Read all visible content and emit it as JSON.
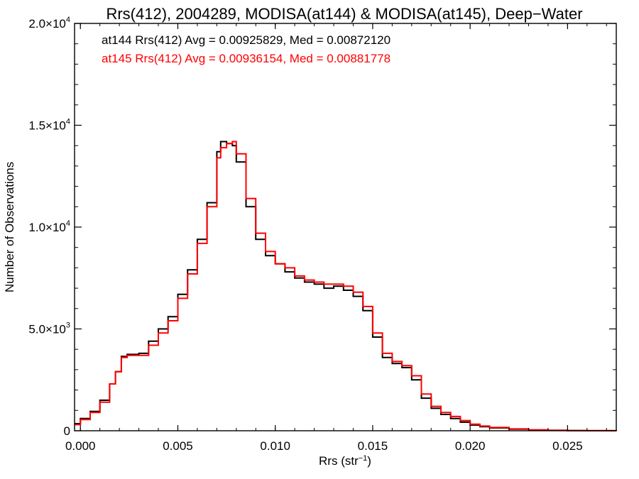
{
  "chart_data": {
    "type": "line",
    "title": "Rrs(412), 2004289, MODISA(at144) & MODISA(at145), Deep−Water",
    "xlabel": {
      "base": "Rrs (str",
      "sup": "−1",
      "close": ")"
    },
    "ylabel": "Number of Observations",
    "xlim": [
      -0.0003,
      0.0275
    ],
    "ylim": [
      0,
      20000
    ],
    "grid": false,
    "x_ticks": [
      {
        "value": 0.0,
        "label": "0.000"
      },
      {
        "value": 0.005,
        "label": "0.005"
      },
      {
        "value": 0.01,
        "label": "0.010"
      },
      {
        "value": 0.015,
        "label": "0.015"
      },
      {
        "value": 0.02,
        "label": "0.020"
      },
      {
        "value": 0.025,
        "label": "0.025"
      }
    ],
    "y_ticks": [
      {
        "value": 0,
        "mant": "0",
        "exp": ""
      },
      {
        "value": 5000,
        "mant": "5.0×10",
        "exp": "3"
      },
      {
        "value": 10000,
        "mant": "1.0×10",
        "exp": "4"
      },
      {
        "value": 15000,
        "mant": "1.5×10",
        "exp": "4"
      },
      {
        "value": 20000,
        "mant": "2.0×10",
        "exp": "4"
      }
    ],
    "annotations": [
      {
        "text": "at144 Rrs(412) Avg = 0.00925829, Med = 0.00872120",
        "color": "#000000"
      },
      {
        "text": "at145 Rrs(412) Avg = 0.00936154, Med = 0.00881778",
        "color": "#ff0000"
      }
    ],
    "series": [
      {
        "name": "at144",
        "color": "#000000",
        "x": [
          -0.0003,
          0.0,
          0.0005,
          0.001,
          0.0015,
          0.0018,
          0.0021,
          0.0024,
          0.003,
          0.0035,
          0.004,
          0.0045,
          0.005,
          0.0055,
          0.006,
          0.0065,
          0.007,
          0.0072,
          0.0075,
          0.0078,
          0.008,
          0.0085,
          0.009,
          0.0095,
          0.01,
          0.0105,
          0.011,
          0.0115,
          0.012,
          0.0125,
          0.013,
          0.0135,
          0.014,
          0.0145,
          0.015,
          0.0155,
          0.016,
          0.0165,
          0.017,
          0.0175,
          0.018,
          0.0185,
          0.019,
          0.0195,
          0.02,
          0.0205,
          0.021,
          0.022,
          0.023,
          0.024,
          0.025,
          0.026,
          0.0275
        ],
        "y": [
          350,
          600,
          950,
          1500,
          2300,
          2900,
          3650,
          3750,
          3800,
          4400,
          5000,
          5600,
          6700,
          7900,
          9400,
          11200,
          13700,
          14200,
          14100,
          14000,
          13200,
          11000,
          9400,
          8600,
          8200,
          7800,
          7500,
          7300,
          7200,
          7000,
          7100,
          6900,
          6600,
          5900,
          4600,
          3600,
          3300,
          3100,
          2500,
          1600,
          1100,
          800,
          600,
          420,
          280,
          200,
          140,
          80,
          40,
          20,
          10,
          5,
          0
        ]
      },
      {
        "name": "at145",
        "color": "#ff0000",
        "x": [
          -0.0003,
          0.0,
          0.0005,
          0.001,
          0.0015,
          0.0018,
          0.0021,
          0.0024,
          0.003,
          0.0035,
          0.004,
          0.0045,
          0.005,
          0.0055,
          0.006,
          0.0065,
          0.007,
          0.0072,
          0.0075,
          0.0078,
          0.008,
          0.0085,
          0.009,
          0.0095,
          0.01,
          0.0105,
          0.011,
          0.0115,
          0.012,
          0.0125,
          0.013,
          0.0135,
          0.014,
          0.0145,
          0.015,
          0.0155,
          0.016,
          0.0165,
          0.017,
          0.0175,
          0.018,
          0.0185,
          0.019,
          0.0195,
          0.02,
          0.0205,
          0.021,
          0.022,
          0.023,
          0.024,
          0.025,
          0.026,
          0.0275
        ],
        "y": [
          300,
          550,
          900,
          1400,
          2300,
          2900,
          3600,
          3700,
          3700,
          4200,
          4800,
          5400,
          6500,
          7700,
          9200,
          11000,
          13400,
          13900,
          14100,
          14200,
          13600,
          11400,
          9700,
          8800,
          8200,
          8000,
          7600,
          7400,
          7300,
          7200,
          7200,
          7100,
          6800,
          6100,
          4800,
          3800,
          3400,
          3200,
          2700,
          1800,
          1200,
          900,
          700,
          500,
          320,
          230,
          160,
          90,
          45,
          20,
          10,
          5,
          0
        ]
      }
    ]
  }
}
